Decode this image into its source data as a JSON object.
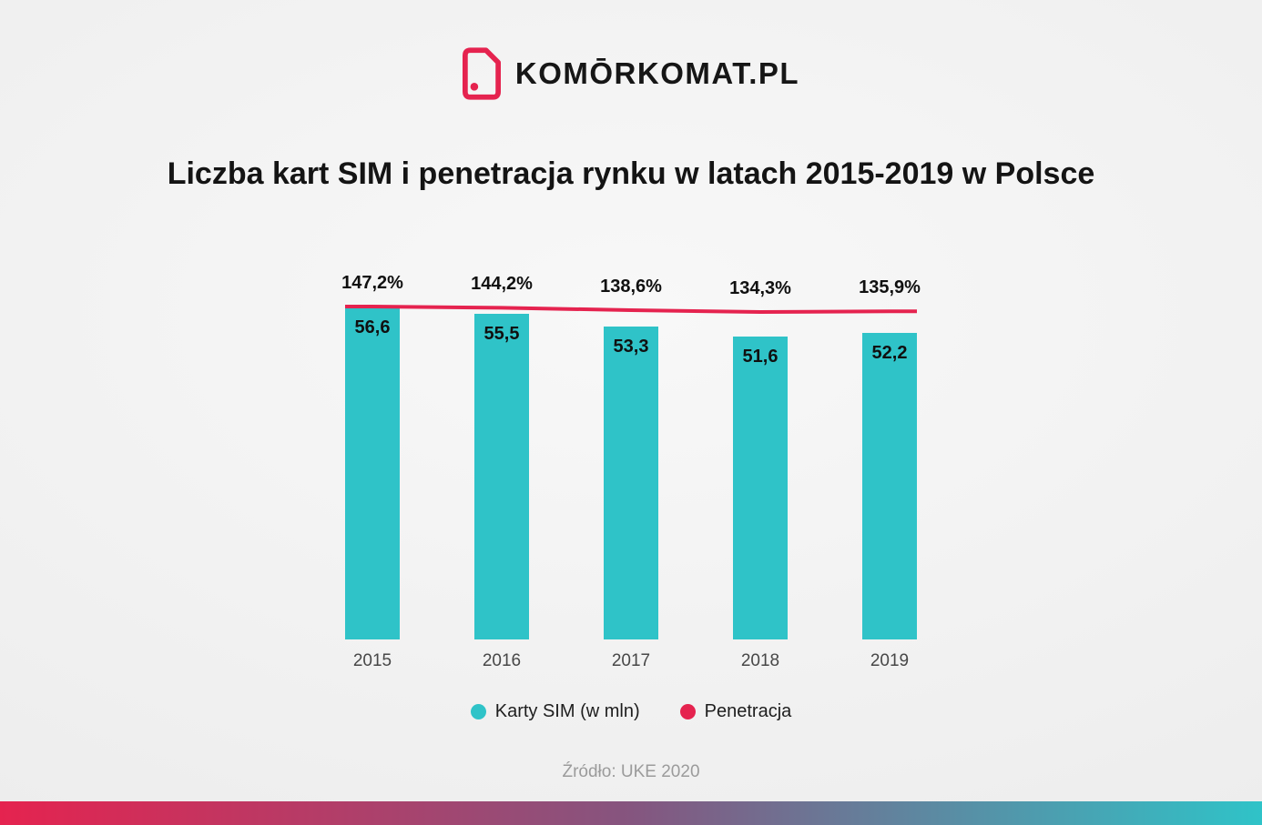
{
  "brand": {
    "logo_text": "KOMŌRKOMAT.PL",
    "icon": "sim-card-icon",
    "accent": "#e5234f"
  },
  "title": "Liczba kart SIM i penetracja rynku w latach 2015-2019 w Polsce",
  "legend": {
    "items": [
      {
        "label": "Karty SIM (w mln)",
        "color": "#2fc3c8"
      },
      {
        "label": "Penetracja",
        "color": "#e5234f"
      }
    ]
  },
  "source": "Źródło: UKE 2020",
  "chart_data": {
    "type": "bar",
    "title": "Liczba kart SIM i penetracja rynku w latach 2015-2019 w Polsce",
    "categories": [
      "2015",
      "2016",
      "2017",
      "2018",
      "2019"
    ],
    "series": [
      {
        "name": "Karty SIM (w mln)",
        "type": "bar",
        "color": "#2fc3c8",
        "values": [
          56.6,
          55.5,
          53.3,
          51.6,
          52.2
        ],
        "value_labels": [
          "56,6",
          "55,5",
          "53,3",
          "51,6",
          "52,2"
        ]
      },
      {
        "name": "Penetracja",
        "type": "line",
        "color": "#e5234f",
        "values": [
          147.2,
          144.2,
          138.6,
          134.3,
          135.9
        ],
        "value_labels": [
          "147,2%",
          "144,2%",
          "138,6%",
          "134,3%",
          "135,9%"
        ]
      }
    ],
    "xlabel": "",
    "ylabel": "",
    "ylim": [
      0,
      60
    ],
    "grid": false,
    "legend_position": "bottom"
  }
}
